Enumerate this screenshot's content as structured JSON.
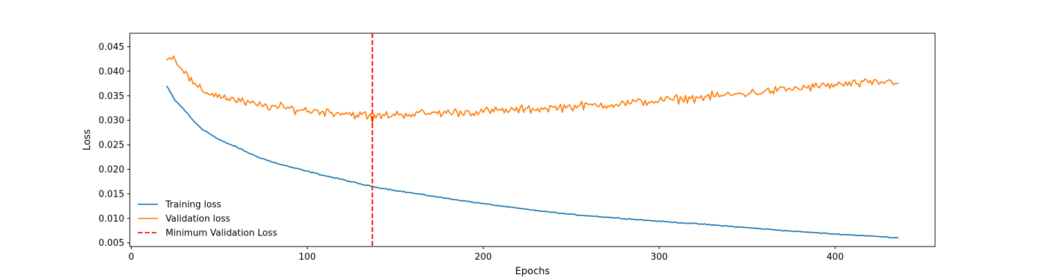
{
  "chart_data": {
    "type": "line",
    "title": "",
    "xlabel": "Epochs",
    "ylabel": "Loss",
    "xlim": [
      -0.8,
      456.8
    ],
    "ylim": [
      0.00425,
      0.04775
    ],
    "xticks": [
      0,
      100,
      200,
      300,
      400
    ],
    "xtick_labels": [
      "0",
      "100",
      "200",
      "300",
      "400"
    ],
    "yticks": [
      0.005,
      0.01,
      0.015,
      0.02,
      0.025,
      0.03,
      0.035,
      0.04,
      0.045
    ],
    "ytick_labels": [
      "0.005",
      "0.010",
      "0.015",
      "0.020",
      "0.025",
      "0.030",
      "0.035",
      "0.040",
      "0.045"
    ],
    "grid": false,
    "legend": {
      "placement": "lower-left",
      "frame": false
    },
    "x": {
      "start": 20,
      "end": 436,
      "step": 1
    },
    "series": [
      {
        "name": "Training loss",
        "color": "#1f77b4",
        "style": "solid",
        "anchors": [
          [
            20,
            0.037
          ],
          [
            25,
            0.034
          ],
          [
            30,
            0.0322
          ],
          [
            35,
            0.03
          ],
          [
            40,
            0.0283
          ],
          [
            50,
            0.026
          ],
          [
            60,
            0.0245
          ],
          [
            70,
            0.0228
          ],
          [
            80,
            0.0215
          ],
          [
            90,
            0.0205
          ],
          [
            100,
            0.0196
          ],
          [
            110,
            0.0187
          ],
          [
            120,
            0.0179
          ],
          [
            130,
            0.017
          ],
          [
            137,
            0.0165
          ],
          [
            150,
            0.0157
          ],
          [
            175,
            0.0143
          ],
          [
            200,
            0.013
          ],
          [
            225,
            0.0118
          ],
          [
            250,
            0.0108
          ],
          [
            275,
            0.0101
          ],
          [
            300,
            0.0094
          ],
          [
            325,
            0.0088
          ],
          [
            350,
            0.0081
          ],
          [
            375,
            0.0074
          ],
          [
            400,
            0.0068
          ],
          [
            420,
            0.0064
          ],
          [
            436,
            0.006
          ]
        ]
      },
      {
        "name": "Validation loss",
        "color": "#ff7f0e",
        "style": "solid",
        "anchors": [
          [
            20,
            0.043
          ],
          [
            25,
            0.0425
          ],
          [
            30,
            0.04
          ],
          [
            35,
            0.0375
          ],
          [
            40,
            0.036
          ],
          [
            50,
            0.035
          ],
          [
            60,
            0.034
          ],
          [
            70,
            0.0332
          ],
          [
            80,
            0.0328
          ],
          [
            100,
            0.032
          ],
          [
            120,
            0.0315
          ],
          [
            137,
            0.0308
          ],
          [
            145,
            0.031
          ],
          [
            150,
            0.0312
          ],
          [
            175,
            0.0315
          ],
          [
            200,
            0.0318
          ],
          [
            225,
            0.0322
          ],
          [
            250,
            0.0328
          ],
          [
            275,
            0.0333
          ],
          [
            300,
            0.034
          ],
          [
            325,
            0.0347
          ],
          [
            350,
            0.0355
          ],
          [
            375,
            0.0364
          ],
          [
            400,
            0.0372
          ],
          [
            420,
            0.0376
          ],
          [
            436,
            0.038
          ]
        ]
      }
    ],
    "vlines": [
      {
        "name": "Minimum Validation Loss",
        "x": 137,
        "color": "#ff0000",
        "style": "dashed"
      }
    ]
  }
}
